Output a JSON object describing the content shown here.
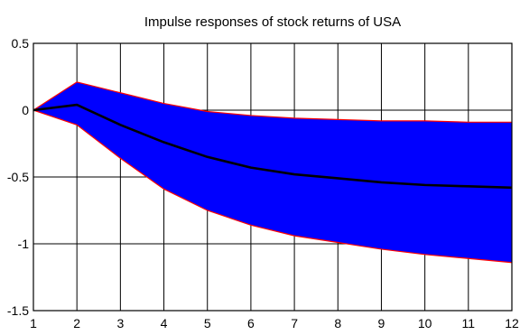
{
  "chart_data": {
    "type": "area",
    "title": "Impulse responses of stock returns of USA",
    "xlabel": "",
    "ylabel": "",
    "x": [
      1,
      2,
      3,
      4,
      5,
      6,
      7,
      8,
      9,
      10,
      11,
      12
    ],
    "xlim": [
      1,
      12
    ],
    "ylim": [
      -1.5,
      0.5
    ],
    "xticks": [
      "1",
      "2",
      "3",
      "4",
      "5",
      "6",
      "7",
      "8",
      "9",
      "10",
      "11",
      "12"
    ],
    "yticks": [
      "0.5",
      "0",
      "-0.5",
      "-1",
      "-1.5"
    ],
    "ytick_values": [
      0.5,
      0,
      -0.5,
      -1,
      -1.5
    ],
    "grid": true,
    "series": [
      {
        "role": "upper-band",
        "values": [
          0,
          0.21,
          0.13,
          0.05,
          -0.01,
          -0.04,
          -0.06,
          -0.07,
          -0.08,
          -0.08,
          -0.09,
          -0.09
        ]
      },
      {
        "role": "point-estimate",
        "values": [
          0,
          0.04,
          -0.11,
          -0.24,
          -0.35,
          -0.43,
          -0.48,
          -0.51,
          -0.54,
          -0.56,
          -0.57,
          -0.58
        ]
      },
      {
        "role": "lower-band",
        "values": [
          0,
          -0.11,
          -0.36,
          -0.59,
          -0.75,
          -0.86,
          -0.94,
          -0.99,
          -1.04,
          -1.08,
          -1.11,
          -1.14
        ]
      }
    ],
    "colors": {
      "band_fill": "#0000ff",
      "band_edge": "#ff0000",
      "line": "#000000",
      "grid": "#000000",
      "axes": "#000000"
    }
  }
}
